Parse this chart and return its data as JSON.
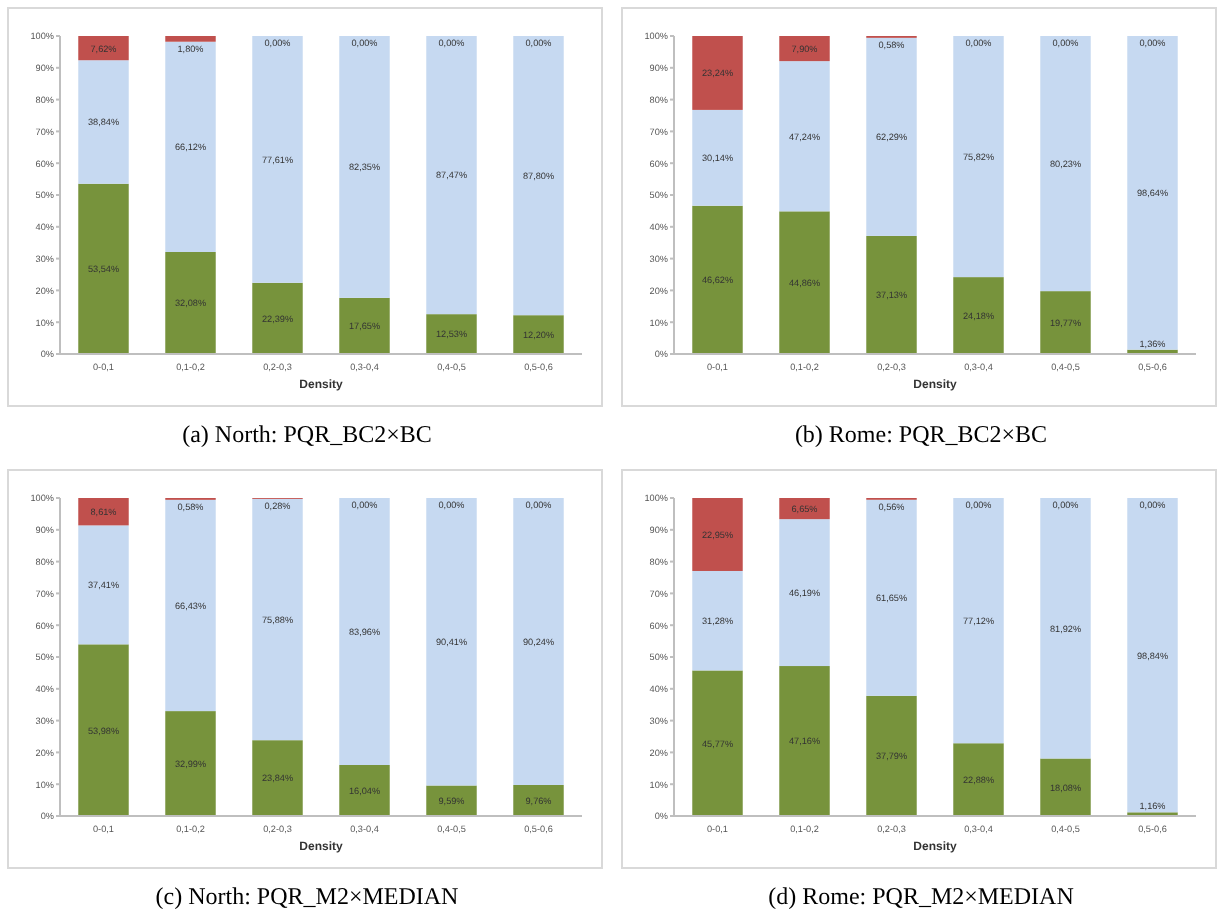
{
  "chart_data": [
    {
      "type": "bar",
      "stacked": true,
      "title": "(a) North: PQR_BC2×BC",
      "xlabel": "Density",
      "categories": [
        "0-0,1",
        "0,1-0,2",
        "0,2-0,3",
        "0,3-0,4",
        "0,4-0,5",
        "0,5-0,6"
      ],
      "ylim": [
        0,
        100
      ],
      "yticks": [
        {
          "value": 0,
          "label": "0%"
        },
        {
          "value": 10,
          "label": "10%"
        },
        {
          "value": 20,
          "label": "20%"
        },
        {
          "value": 30,
          "label": "30%"
        },
        {
          "value": 40,
          "label": "40%"
        },
        {
          "value": 50,
          "label": "50%"
        },
        {
          "value": 60,
          "label": "60%"
        },
        {
          "value": 70,
          "label": "70%"
        },
        {
          "value": 80,
          "label": "80%"
        },
        {
          "value": 90,
          "label": "90%"
        },
        {
          "value": 100,
          "label": "100%"
        }
      ],
      "grid": false,
      "series": [
        {
          "color": "#77933c",
          "values": [
            53.54,
            32.08,
            22.39,
            17.65,
            12.53,
            12.2
          ],
          "value_labels": [
            "53,54%",
            "32,08%",
            "22,39%",
            "17,65%",
            "12,53%",
            "12,20%"
          ]
        },
        {
          "color": "#c6d9f1",
          "values": [
            38.84,
            66.12,
            77.61,
            82.35,
            87.47,
            87.8
          ],
          "value_labels": [
            "38,84%",
            "66,12%",
            "77,61%",
            "82,35%",
            "87,47%",
            "87,80%"
          ]
        },
        {
          "color": "#c0504d",
          "values": [
            7.62,
            1.8,
            0,
            0,
            0,
            0
          ],
          "value_labels": [
            "7,62%",
            "1,80%",
            "0,00%",
            "0,00%",
            "0,00%",
            "0,00%"
          ]
        }
      ]
    },
    {
      "type": "bar",
      "stacked": true,
      "title": "(b) Rome: PQR_BC2×BC",
      "xlabel": "Density",
      "categories": [
        "0-0,1",
        "0,1-0,2",
        "0,2-0,3",
        "0,3-0,4",
        "0,4-0,5",
        "0,5-0,6"
      ],
      "ylim": [
        0,
        100
      ],
      "yticks": [
        {
          "value": 0,
          "label": "0%"
        },
        {
          "value": 10,
          "label": "10%"
        },
        {
          "value": 20,
          "label": "20%"
        },
        {
          "value": 30,
          "label": "30%"
        },
        {
          "value": 40,
          "label": "40%"
        },
        {
          "value": 50,
          "label": "50%"
        },
        {
          "value": 60,
          "label": "60%"
        },
        {
          "value": 70,
          "label": "70%"
        },
        {
          "value": 80,
          "label": "80%"
        },
        {
          "value": 90,
          "label": "90%"
        },
        {
          "value": 100,
          "label": "100%"
        }
      ],
      "grid": false,
      "series": [
        {
          "color": "#77933c",
          "values": [
            46.62,
            44.86,
            37.13,
            24.18,
            19.77,
            1.36
          ],
          "value_labels": [
            "46,62%",
            "44,86%",
            "37,13%",
            "24,18%",
            "19,77%",
            "1,36%"
          ]
        },
        {
          "color": "#c6d9f1",
          "values": [
            30.14,
            47.24,
            62.29,
            75.82,
            80.23,
            98.64
          ],
          "value_labels": [
            "30,14%",
            "47,24%",
            "62,29%",
            "75,82%",
            "80,23%",
            "98,64%"
          ]
        },
        {
          "color": "#c0504d",
          "values": [
            23.24,
            7.9,
            0.58,
            0,
            0,
            0
          ],
          "value_labels": [
            "23,24%",
            "7,90%",
            "0,58%",
            "0,00%",
            "0,00%",
            "0,00%"
          ]
        }
      ]
    },
    {
      "type": "bar",
      "stacked": true,
      "title": "(c) North: PQR_M2×MEDIAN",
      "xlabel": "Density",
      "categories": [
        "0-0,1",
        "0,1-0,2",
        "0,2-0,3",
        "0,3-0,4",
        "0,4-0,5",
        "0,5-0,6"
      ],
      "ylim": [
        0,
        100
      ],
      "yticks": [
        {
          "value": 0,
          "label": "0%"
        },
        {
          "value": 10,
          "label": "10%"
        },
        {
          "value": 20,
          "label": "20%"
        },
        {
          "value": 30,
          "label": "30%"
        },
        {
          "value": 40,
          "label": "40%"
        },
        {
          "value": 50,
          "label": "50%"
        },
        {
          "value": 60,
          "label": "60%"
        },
        {
          "value": 70,
          "label": "70%"
        },
        {
          "value": 80,
          "label": "80%"
        },
        {
          "value": 90,
          "label": "90%"
        },
        {
          "value": 100,
          "label": "100%"
        }
      ],
      "grid": false,
      "series": [
        {
          "color": "#77933c",
          "values": [
            53.98,
            32.99,
            23.84,
            16.04,
            9.59,
            9.76
          ],
          "value_labels": [
            "53,98%",
            "32,99%",
            "23,84%",
            "16,04%",
            "9,59%",
            "9,76%"
          ]
        },
        {
          "color": "#c6d9f1",
          "values": [
            37.41,
            66.43,
            75.88,
            83.96,
            90.41,
            90.24
          ],
          "value_labels": [
            "37,41%",
            "66,43%",
            "75,88%",
            "83,96%",
            "90,41%",
            "90,24%"
          ]
        },
        {
          "color": "#c0504d",
          "values": [
            8.61,
            0.58,
            0.28,
            0,
            0,
            0
          ],
          "value_labels": [
            "8,61%",
            "0,58%",
            "0,28%",
            "0,00%",
            "0,00%",
            "0,00%"
          ]
        }
      ]
    },
    {
      "type": "bar",
      "stacked": true,
      "title": "(d) Rome: PQR_M2×MEDIAN",
      "xlabel": "Density",
      "categories": [
        "0-0,1",
        "0,1-0,2",
        "0,2-0,3",
        "0,3-0,4",
        "0,4-0,5",
        "0,5-0,6"
      ],
      "ylim": [
        0,
        100
      ],
      "yticks": [
        {
          "value": 0,
          "label": "0%"
        },
        {
          "value": 10,
          "label": "10%"
        },
        {
          "value": 20,
          "label": "20%"
        },
        {
          "value": 30,
          "label": "30%"
        },
        {
          "value": 40,
          "label": "40%"
        },
        {
          "value": 50,
          "label": "50%"
        },
        {
          "value": 60,
          "label": "60%"
        },
        {
          "value": 70,
          "label": "70%"
        },
        {
          "value": 80,
          "label": "80%"
        },
        {
          "value": 90,
          "label": "90%"
        },
        {
          "value": 100,
          "label": "100%"
        }
      ],
      "grid": false,
      "series": [
        {
          "color": "#77933c",
          "values": [
            45.77,
            47.16,
            37.79,
            22.88,
            18.08,
            1.16
          ],
          "value_labels": [
            "45,77%",
            "47,16%",
            "37,79%",
            "22,88%",
            "18,08%",
            "1,16%"
          ]
        },
        {
          "color": "#c6d9f1",
          "values": [
            31.28,
            46.19,
            61.65,
            77.12,
            81.92,
            98.84
          ],
          "value_labels": [
            "31,28%",
            "46,19%",
            "61,65%",
            "77,12%",
            "81,92%",
            "98,84%"
          ]
        },
        {
          "color": "#c0504d",
          "values": [
            22.95,
            6.65,
            0.56,
            0,
            0,
            0
          ],
          "value_labels": [
            "22,95%",
            "6,65%",
            "0,56%",
            "0,00%",
            "0,00%",
            "0,00%"
          ]
        }
      ]
    }
  ]
}
